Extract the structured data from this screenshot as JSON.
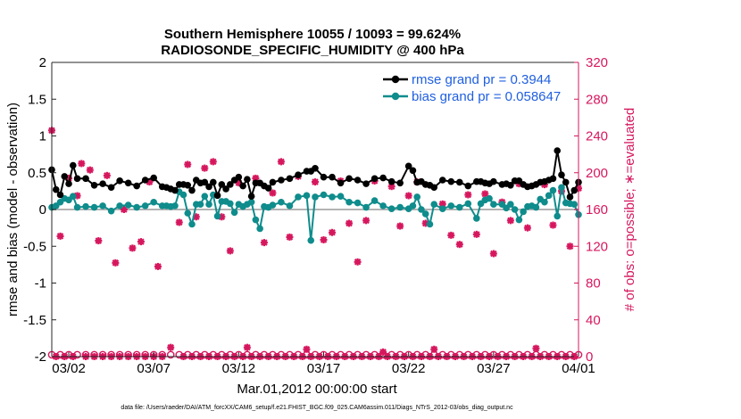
{
  "chart_data": {
    "type": "line",
    "title_line1": "Southern Hemisphere 10055 / 10093 = 99.624%",
    "title_line2": "RADIOSONDE_SPECIFIC_HUMIDITY @ 400 hPa",
    "ylabel_left": "rmse and bias (model - observation)",
    "ylabel_right": "# of obs: o=possible; ∗=evaluated",
    "xlabel": "Mar.01,2012 00:00:00 start",
    "footnote": "data file: /Users/raeder/DAI/ATM_forcXX/CAM6_setup/f.e21.FHIST_BGC.f09_025.CAM6assim.011/Diags_NTrS_2012-03/obs_diag_output.nc",
    "ylim_left": [
      -2,
      2
    ],
    "ylim_right": [
      0,
      320
    ],
    "xlim": [
      0.5,
      31.5
    ],
    "left_ticks": [
      -2,
      -1.5,
      -1,
      -0.5,
      0,
      0.5,
      1,
      1.5,
      2
    ],
    "left_tick_labels": [
      "-2",
      "-1.5",
      "-1",
      "-0.5",
      "0",
      "0.5",
      "1",
      "1.5",
      "2"
    ],
    "right_ticks": [
      0,
      40,
      80,
      120,
      160,
      200,
      240,
      280,
      320
    ],
    "right_tick_labels": [
      "0",
      "40",
      "80",
      "120",
      "160",
      "200",
      "240",
      "280",
      "320"
    ],
    "x_ticks": [
      1.5,
      6.5,
      11.5,
      16.5,
      21.5,
      26.5,
      31.5
    ],
    "x_tick_labels": [
      "03/02",
      "03/07",
      "03/12",
      "03/17",
      "03/22",
      "03/27",
      "04/01"
    ],
    "colors": {
      "rmse": "#000000",
      "bias": "#0f8c8c",
      "obs": "#d6175e",
      "zero_line": "#b3b3b3",
      "legend_text": "#1f5fe0"
    },
    "legend": [
      {
        "label": "rmse grand pr = 0.3944",
        "series": "rmse"
      },
      {
        "label": "bias grand pr = 0.058647",
        "series": "bias"
      }
    ],
    "x": [
      0.5,
      0.75,
      1,
      1.25,
      1.5,
      1.75,
      2,
      2.5,
      3,
      3.5,
      4,
      4.5,
      5,
      5.5,
      6,
      6.5,
      7,
      7.25,
      7.5,
      7.75,
      8,
      8.25,
      8.5,
      8.75,
      9,
      9.25,
      9.5,
      9.75,
      10,
      10.25,
      10.5,
      10.75,
      11,
      11.25,
      11.5,
      11.75,
      12,
      12.25,
      12.5,
      12.75,
      13,
      13.25,
      13.5,
      14,
      14.5,
      15,
      15.5,
      15.75,
      16,
      16.5,
      17,
      17.5,
      18,
      18.5,
      19,
      19.5,
      20,
      20.5,
      21,
      21.5,
      21.75,
      22,
      22.25,
      22.5,
      22.75,
      23,
      23.5,
      24,
      24.5,
      25,
      25.5,
      25.75,
      26,
      26.25,
      26.5,
      27,
      27.25,
      27.5,
      27.75,
      28,
      28.25,
      28.5,
      28.75,
      29,
      29.25,
      29.5,
      29.75,
      30,
      30.25,
      30.5,
      30.75,
      31,
      31.25,
      31.5
    ],
    "series": [
      {
        "name": "rmse",
        "values": [
          0.54,
          0.27,
          0.2,
          0.45,
          0.35,
          0.6,
          0.42,
          0.42,
          0.33,
          0.35,
          0.3,
          0.39,
          0.36,
          0.32,
          0.4,
          0.43,
          0.31,
          0.3,
          0.28,
          0.26,
          0.34,
          0.34,
          0.33,
          0.26,
          0.4,
          0.36,
          0.37,
          0.31,
          0.37,
          0.19,
          0.34,
          0.28,
          0.34,
          0.4,
          0.44,
          0.32,
          0.41,
          0.18,
          0.36,
          0.36,
          0.32,
          0.29,
          0.37,
          0.4,
          0.42,
          0.47,
          0.52,
          0.52,
          0.56,
          0.44,
          0.44,
          0.36,
          0.42,
          0.4,
          0.35,
          0.42,
          0.43,
          0.38,
          0.36,
          0.59,
          0.53,
          0.37,
          0.38,
          0.34,
          0.33,
          0.3,
          0.4,
          0.38,
          0.37,
          0.32,
          0.38,
          0.38,
          0.36,
          0.35,
          0.38,
          0.34,
          0.35,
          0.33,
          0.39,
          0.39,
          0.34,
          0.31,
          0.32,
          0.34,
          0.37,
          0.38,
          0.4,
          0.42,
          0.8,
          0.47,
          0.37,
          0.17,
          0.26,
          0.37
        ]
      },
      {
        "name": "bias",
        "values": [
          0.03,
          0.05,
          0.1,
          0.15,
          0.13,
          0.18,
          0.03,
          0.04,
          0.03,
          0.05,
          -0.02,
          0.05,
          0.06,
          0.03,
          0.05,
          0.1,
          0.05,
          0.05,
          0.04,
          0.05,
          0.24,
          0.2,
          -0.05,
          -0.2,
          0.07,
          0.07,
          0.18,
          0.07,
          0.2,
          -0.09,
          0.11,
          0.11,
          0.08,
          -0.04,
          0.07,
          0.04,
          0.07,
          0.1,
          -0.14,
          -0.26,
          0.04,
          0.03,
          0.06,
          0.1,
          0.05,
          0.17,
          0.19,
          -0.42,
          0.17,
          0.2,
          0.17,
          0.18,
          0.1,
          0.09,
          0.03,
          0.12,
          0.05,
          0.01,
          0.03,
          0.01,
          0.05,
          0.17,
          0.0,
          -0.06,
          -0.2,
          0.07,
          0.01,
          0.05,
          0.03,
          0.08,
          -0.12,
          0.08,
          0.13,
          0.15,
          0.07,
          0.07,
          0.02,
          0.07,
          0.0,
          -0.14,
          -0.03,
          0.04,
          0.05,
          0.03,
          0.14,
          0.1,
          0.19,
          0.26,
          -0.09,
          0.3,
          0.09,
          0.08,
          0.07,
          -0.07
        ]
      }
    ],
    "obs_possible": [
      {
        "x": 0.5,
        "y": 2
      },
      {
        "x": 1,
        "y": 2
      },
      {
        "x": 1.5,
        "y": 2
      },
      {
        "x": 2,
        "y": 2
      },
      {
        "x": 2.5,
        "y": 2
      },
      {
        "x": 3,
        "y": 2
      },
      {
        "x": 3.5,
        "y": 2
      },
      {
        "x": 4,
        "y": 2
      },
      {
        "x": 4.5,
        "y": 2
      },
      {
        "x": 5,
        "y": 2
      },
      {
        "x": 5.5,
        "y": 2
      },
      {
        "x": 6,
        "y": 2
      },
      {
        "x": 6.5,
        "y": 2
      },
      {
        "x": 7,
        "y": 2
      },
      {
        "x": 7.5,
        "y": 2
      },
      {
        "x": 8,
        "y": 2
      },
      {
        "x": 8.5,
        "y": 2
      },
      {
        "x": 9,
        "y": 2
      },
      {
        "x": 9.5,
        "y": 2
      },
      {
        "x": 10,
        "y": 2
      },
      {
        "x": 10.5,
        "y": 2
      },
      {
        "x": 11,
        "y": 2
      },
      {
        "x": 11.5,
        "y": 2
      },
      {
        "x": 12,
        "y": 2
      },
      {
        "x": 12.5,
        "y": 2
      },
      {
        "x": 13,
        "y": 2
      },
      {
        "x": 13.5,
        "y": 2
      },
      {
        "x": 14,
        "y": 2
      },
      {
        "x": 14.5,
        "y": 2
      },
      {
        "x": 15,
        "y": 2
      },
      {
        "x": 15.5,
        "y": 2
      },
      {
        "x": 16,
        "y": 2
      },
      {
        "x": 16.5,
        "y": 2
      },
      {
        "x": 17,
        "y": 2
      },
      {
        "x": 17.5,
        "y": 2
      },
      {
        "x": 18,
        "y": 2
      },
      {
        "x": 18.5,
        "y": 2
      },
      {
        "x": 19,
        "y": 2
      },
      {
        "x": 19.5,
        "y": 2
      },
      {
        "x": 20,
        "y": 2
      },
      {
        "x": 20.5,
        "y": 2
      },
      {
        "x": 21,
        "y": 2
      },
      {
        "x": 21.5,
        "y": 2
      },
      {
        "x": 22,
        "y": 2
      },
      {
        "x": 22.5,
        "y": 2
      },
      {
        "x": 23,
        "y": 2
      },
      {
        "x": 23.5,
        "y": 2
      },
      {
        "x": 24,
        "y": 2
      },
      {
        "x": 24.5,
        "y": 2
      },
      {
        "x": 25,
        "y": 2
      },
      {
        "x": 25.5,
        "y": 2
      },
      {
        "x": 26,
        "y": 2
      },
      {
        "x": 26.5,
        "y": 2
      },
      {
        "x": 27,
        "y": 2
      },
      {
        "x": 27.5,
        "y": 2
      },
      {
        "x": 28,
        "y": 2
      },
      {
        "x": 28.5,
        "y": 2
      },
      {
        "x": 29,
        "y": 2
      },
      {
        "x": 29.5,
        "y": 2
      },
      {
        "x": 30,
        "y": 2
      },
      {
        "x": 30.5,
        "y": 2
      },
      {
        "x": 31,
        "y": 2
      },
      {
        "x": 31.5,
        "y": 2
      }
    ],
    "obs_evaluated": [
      {
        "x": 0.5,
        "y": 246
      },
      {
        "x": 0.75,
        "y": 0
      },
      {
        "x": 1,
        "y": 131
      },
      {
        "x": 1.25,
        "y": 0
      },
      {
        "x": 1.5,
        "y": 194
      },
      {
        "x": 1.75,
        "y": 0
      },
      {
        "x": 2,
        "y": 175
      },
      {
        "x": 2.25,
        "y": 210
      },
      {
        "x": 2.5,
        "y": 0
      },
      {
        "x": 2.75,
        "y": 203
      },
      {
        "x": 3,
        "y": 0
      },
      {
        "x": 3.25,
        "y": 126
      },
      {
        "x": 3.5,
        "y": 0
      },
      {
        "x": 3.75,
        "y": 197
      },
      {
        "x": 4,
        "y": 0
      },
      {
        "x": 4.25,
        "y": 102
      },
      {
        "x": 4.5,
        "y": 0
      },
      {
        "x": 4.75,
        "y": 160
      },
      {
        "x": 5,
        "y": 0
      },
      {
        "x": 5.25,
        "y": 118
      },
      {
        "x": 5.5,
        "y": 0
      },
      {
        "x": 5.75,
        "y": 125
      },
      {
        "x": 6,
        "y": 0
      },
      {
        "x": 6.25,
        "y": 190
      },
      {
        "x": 6.5,
        "y": 0
      },
      {
        "x": 6.75,
        "y": 98
      },
      {
        "x": 7,
        "y": 0
      },
      {
        "x": 7.5,
        "y": 10
      },
      {
        "x": 8,
        "y": 146
      },
      {
        "x": 8.25,
        "y": 0
      },
      {
        "x": 8.5,
        "y": 209
      },
      {
        "x": 8.75,
        "y": 0
      },
      {
        "x": 9,
        "y": 152
      },
      {
        "x": 9.25,
        "y": 0
      },
      {
        "x": 9.5,
        "y": 205
      },
      {
        "x": 9.75,
        "y": 0
      },
      {
        "x": 10,
        "y": 212
      },
      {
        "x": 10.25,
        "y": 0
      },
      {
        "x": 10.5,
        "y": 152
      },
      {
        "x": 10.75,
        "y": 0
      },
      {
        "x": 11,
        "y": 115
      },
      {
        "x": 11.25,
        "y": 0
      },
      {
        "x": 11.5,
        "y": 189
      },
      {
        "x": 11.75,
        "y": 0
      },
      {
        "x": 12,
        "y": 10
      },
      {
        "x": 12.25,
        "y": 0
      },
      {
        "x": 12.5,
        "y": 194
      },
      {
        "x": 12.75,
        "y": 0
      },
      {
        "x": 13,
        "y": 124
      },
      {
        "x": 13.25,
        "y": 0
      },
      {
        "x": 13.5,
        "y": 178
      },
      {
        "x": 13.75,
        "y": 0
      },
      {
        "x": 14,
        "y": 212
      },
      {
        "x": 14.25,
        "y": 0
      },
      {
        "x": 14.5,
        "y": 130
      },
      {
        "x": 14.75,
        "y": 0
      },
      {
        "x": 15,
        "y": 196
      },
      {
        "x": 15.25,
        "y": 0
      },
      {
        "x": 15.5,
        "y": 8
      },
      {
        "x": 15.75,
        "y": 0
      },
      {
        "x": 16,
        "y": 190
      },
      {
        "x": 16.25,
        "y": 0
      },
      {
        "x": 16.5,
        "y": 127
      },
      {
        "x": 16.75,
        "y": 0
      },
      {
        "x": 17,
        "y": 135
      },
      {
        "x": 17.25,
        "y": 0
      },
      {
        "x": 17.5,
        "y": 191
      },
      {
        "x": 17.75,
        "y": 0
      },
      {
        "x": 18,
        "y": 145
      },
      {
        "x": 18.25,
        "y": 0
      },
      {
        "x": 18.5,
        "y": 103
      },
      {
        "x": 18.75,
        "y": 0
      },
      {
        "x": 19,
        "y": 148
      },
      {
        "x": 19.25,
        "y": 0
      },
      {
        "x": 19.5,
        "y": 191
      },
      {
        "x": 19.75,
        "y": 0
      },
      {
        "x": 20,
        "y": 5
      },
      {
        "x": 20.25,
        "y": 0
      },
      {
        "x": 20.5,
        "y": 185
      },
      {
        "x": 20.75,
        "y": 0
      },
      {
        "x": 21,
        "y": 142
      },
      {
        "x": 21.25,
        "y": 0
      },
      {
        "x": 21.5,
        "y": 175
      },
      {
        "x": 21.75,
        "y": 0
      },
      {
        "x": 22,
        "y": 190
      },
      {
        "x": 22.25,
        "y": 0
      },
      {
        "x": 22.5,
        "y": 145
      },
      {
        "x": 22.75,
        "y": 0
      },
      {
        "x": 23,
        "y": 8
      },
      {
        "x": 23.25,
        "y": 0
      },
      {
        "x": 23.5,
        "y": 166
      },
      {
        "x": 23.75,
        "y": 0
      },
      {
        "x": 24,
        "y": 132
      },
      {
        "x": 24.25,
        "y": 0
      },
      {
        "x": 24.5,
        "y": 122
      },
      {
        "x": 24.75,
        "y": 0
      },
      {
        "x": 25,
        "y": 176
      },
      {
        "x": 25.25,
        "y": 0
      },
      {
        "x": 25.5,
        "y": 133
      },
      {
        "x": 25.75,
        "y": 0
      },
      {
        "x": 26,
        "y": 177
      },
      {
        "x": 26.25,
        "y": 0
      },
      {
        "x": 26.5,
        "y": 112
      },
      {
        "x": 26.75,
        "y": 0
      },
      {
        "x": 27,
        "y": 168
      },
      {
        "x": 27.25,
        "y": 0
      },
      {
        "x": 27.5,
        "y": 148
      },
      {
        "x": 27.75,
        "y": 0
      },
      {
        "x": 28,
        "y": 188
      },
      {
        "x": 28.25,
        "y": 0
      },
      {
        "x": 28.5,
        "y": 140
      },
      {
        "x": 28.75,
        "y": 0
      },
      {
        "x": 29,
        "y": 9
      },
      {
        "x": 29.25,
        "y": 0
      },
      {
        "x": 29.5,
        "y": 187
      },
      {
        "x": 29.75,
        "y": 0
      },
      {
        "x": 30,
        "y": 143
      },
      {
        "x": 30.25,
        "y": 0
      },
      {
        "x": 30.5,
        "y": 180
      },
      {
        "x": 30.75,
        "y": 0
      },
      {
        "x": 31,
        "y": 120
      },
      {
        "x": 31.25,
        "y": 0
      },
      {
        "x": 31.5,
        "y": 183
      }
    ]
  }
}
